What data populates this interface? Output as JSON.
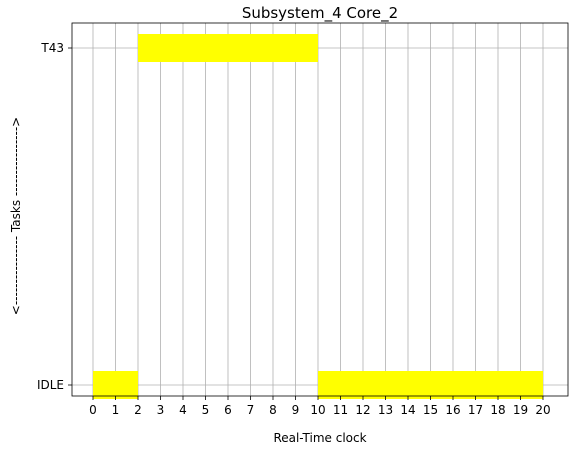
{
  "chart_data": {
    "type": "gantt",
    "title": "Subsystem_4 Core_2",
    "xlabel": "Real-Time clock",
    "ylabel": "<---------------- Tasks ---------------->",
    "x_ticks": [
      0,
      1,
      2,
      3,
      4,
      5,
      6,
      7,
      8,
      9,
      10,
      11,
      12,
      13,
      14,
      15,
      16,
      17,
      18,
      19,
      20
    ],
    "xlim": [
      -0.95,
      20.95
    ],
    "grid": true,
    "tasks": [
      "IDLE",
      "T43"
    ],
    "bar_color": "#ffff00",
    "bars": [
      {
        "task": "IDLE",
        "start": 0,
        "end": 2
      },
      {
        "task": "T43",
        "start": 2,
        "end": 10
      },
      {
        "task": "IDLE",
        "start": 10,
        "end": 20
      }
    ]
  }
}
